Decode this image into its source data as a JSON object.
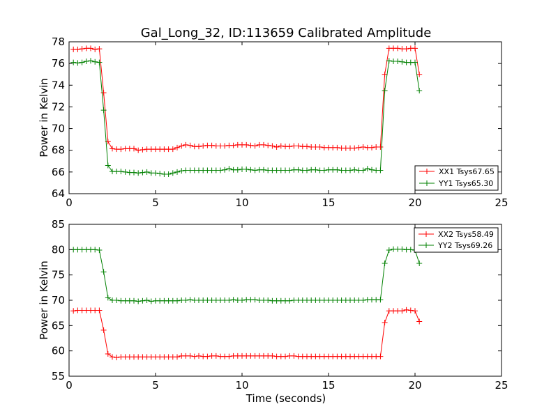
{
  "figure": {
    "title": "Gal_Long_32, ID:113659 Calibrated Amplitude",
    "xlabel": "Time (seconds)"
  },
  "colors": {
    "xx": "#ff0000",
    "yy": "#008000"
  },
  "chart_data": [
    {
      "type": "line",
      "ylabel": "Power in Kelvin",
      "xlim": [
        0,
        25
      ],
      "ylim": [
        64,
        78
      ],
      "xticks": [
        0,
        5,
        10,
        15,
        20,
        25
      ],
      "yticks": [
        64,
        66,
        68,
        70,
        72,
        74,
        76,
        78
      ],
      "legend_position": "lower-right",
      "marker": "plus",
      "series": [
        {
          "name": "XX1 Tsys67.65",
          "color": "#ff0000",
          "x": [
            0.25,
            0.5,
            0.75,
            1.0,
            1.25,
            1.5,
            1.75,
            2.0,
            2.25,
            2.5,
            2.75,
            3.0,
            3.25,
            3.5,
            3.75,
            4.0,
            4.25,
            4.5,
            4.75,
            5.0,
            5.25,
            5.5,
            5.75,
            6.0,
            6.25,
            6.5,
            6.75,
            7.0,
            7.25,
            7.5,
            7.75,
            8.0,
            8.25,
            8.5,
            8.75,
            9.0,
            9.25,
            9.5,
            9.75,
            10.0,
            10.25,
            10.5,
            10.75,
            11.0,
            11.25,
            11.5,
            11.75,
            12.0,
            12.25,
            12.5,
            12.75,
            13.0,
            13.25,
            13.5,
            13.75,
            14.0,
            14.25,
            14.5,
            14.75,
            15.0,
            15.25,
            15.5,
            15.75,
            16.0,
            16.25,
            16.5,
            16.75,
            17.0,
            17.25,
            17.5,
            17.75,
            18.0,
            18.25,
            18.5,
            18.75,
            19.0,
            19.25,
            19.5,
            19.75,
            20.0,
            20.25
          ],
          "y": [
            77.3,
            77.3,
            77.35,
            77.4,
            77.4,
            77.3,
            77.35,
            73.3,
            68.8,
            68.15,
            68.1,
            68.1,
            68.15,
            68.15,
            68.15,
            68.0,
            68.05,
            68.1,
            68.1,
            68.1,
            68.1,
            68.1,
            68.1,
            68.1,
            68.25,
            68.4,
            68.5,
            68.45,
            68.35,
            68.35,
            68.4,
            68.45,
            68.45,
            68.4,
            68.4,
            68.4,
            68.45,
            68.45,
            68.5,
            68.5,
            68.5,
            68.45,
            68.4,
            68.5,
            68.5,
            68.45,
            68.4,
            68.3,
            68.4,
            68.35,
            68.35,
            68.4,
            68.4,
            68.35,
            68.35,
            68.3,
            68.3,
            68.3,
            68.25,
            68.25,
            68.25,
            68.25,
            68.2,
            68.2,
            68.2,
            68.2,
            68.25,
            68.3,
            68.25,
            68.25,
            68.3,
            68.3,
            75.0,
            77.4,
            77.4,
            77.4,
            77.35,
            77.35,
            77.4,
            77.4,
            75.0
          ]
        },
        {
          "name": "YY1 Tsys65.30",
          "color": "#008000",
          "x": [
            0.25,
            0.5,
            0.75,
            1.0,
            1.25,
            1.5,
            1.75,
            2.0,
            2.25,
            2.5,
            2.75,
            3.0,
            3.25,
            3.5,
            3.75,
            4.0,
            4.25,
            4.5,
            4.75,
            5.0,
            5.25,
            5.5,
            5.75,
            6.0,
            6.25,
            6.5,
            6.75,
            7.0,
            7.25,
            7.5,
            7.75,
            8.0,
            8.25,
            8.5,
            8.75,
            9.0,
            9.25,
            9.5,
            9.75,
            10.0,
            10.25,
            10.5,
            10.75,
            11.0,
            11.25,
            11.5,
            11.75,
            12.0,
            12.25,
            12.5,
            12.75,
            13.0,
            13.25,
            13.5,
            13.75,
            14.0,
            14.25,
            14.5,
            14.75,
            15.0,
            15.25,
            15.5,
            15.75,
            16.0,
            16.25,
            16.5,
            16.75,
            17.0,
            17.25,
            17.5,
            17.75,
            18.0,
            18.25,
            18.5,
            18.75,
            19.0,
            19.25,
            19.5,
            19.75,
            20.0,
            20.25
          ],
          "y": [
            76.1,
            76.05,
            76.1,
            76.2,
            76.25,
            76.15,
            76.1,
            71.7,
            66.6,
            66.05,
            66.05,
            66.05,
            66.0,
            65.95,
            65.95,
            65.9,
            65.95,
            66.0,
            65.9,
            65.9,
            65.85,
            65.8,
            65.8,
            65.9,
            66.0,
            66.1,
            66.15,
            66.15,
            66.15,
            66.15,
            66.15,
            66.15,
            66.15,
            66.15,
            66.15,
            66.2,
            66.3,
            66.2,
            66.2,
            66.25,
            66.25,
            66.2,
            66.15,
            66.2,
            66.2,
            66.15,
            66.15,
            66.15,
            66.15,
            66.15,
            66.15,
            66.2,
            66.2,
            66.15,
            66.15,
            66.2,
            66.2,
            66.15,
            66.15,
            66.2,
            66.2,
            66.2,
            66.15,
            66.15,
            66.15,
            66.2,
            66.15,
            66.15,
            66.3,
            66.2,
            66.15,
            66.15,
            73.5,
            76.25,
            76.2,
            76.2,
            76.15,
            76.1,
            76.1,
            76.1,
            73.5
          ]
        }
      ]
    },
    {
      "type": "line",
      "ylabel": "Power in Kelvin",
      "xlim": [
        0,
        25
      ],
      "ylim": [
        55,
        85
      ],
      "xticks": [
        0,
        5,
        10,
        15,
        20,
        25
      ],
      "yticks": [
        55,
        60,
        65,
        70,
        75,
        80,
        85
      ],
      "legend_position": "upper-right",
      "marker": "plus",
      "series": [
        {
          "name": "XX2 Tsys58.49",
          "color": "#ff0000",
          "x": [
            0.25,
            0.5,
            0.75,
            1.0,
            1.25,
            1.5,
            1.75,
            2.0,
            2.25,
            2.5,
            2.75,
            3.0,
            3.25,
            3.5,
            3.75,
            4.0,
            4.25,
            4.5,
            4.75,
            5.0,
            5.25,
            5.5,
            5.75,
            6.0,
            6.25,
            6.5,
            6.75,
            7.0,
            7.25,
            7.5,
            7.75,
            8.0,
            8.25,
            8.5,
            8.75,
            9.0,
            9.25,
            9.5,
            9.75,
            10.0,
            10.25,
            10.5,
            10.75,
            11.0,
            11.25,
            11.5,
            11.75,
            12.0,
            12.25,
            12.5,
            12.75,
            13.0,
            13.25,
            13.5,
            13.75,
            14.0,
            14.25,
            14.5,
            14.75,
            15.0,
            15.25,
            15.5,
            15.75,
            16.0,
            16.25,
            16.5,
            16.75,
            17.0,
            17.25,
            17.5,
            17.75,
            18.0,
            18.25,
            18.5,
            18.75,
            19.0,
            19.25,
            19.5,
            19.75,
            20.0,
            20.25
          ],
          "y": [
            67.9,
            68.0,
            68.0,
            68.0,
            68.0,
            68.0,
            68.0,
            64.1,
            59.4,
            58.8,
            58.7,
            58.8,
            58.8,
            58.8,
            58.8,
            58.8,
            58.8,
            58.8,
            58.8,
            58.8,
            58.8,
            58.8,
            58.8,
            58.8,
            58.8,
            59.0,
            59.0,
            59.0,
            58.9,
            59.0,
            58.9,
            58.9,
            59.0,
            59.0,
            58.9,
            58.9,
            58.9,
            59.0,
            59.0,
            59.0,
            59.0,
            59.0,
            59.0,
            59.0,
            59.0,
            59.0,
            59.0,
            58.9,
            58.9,
            58.9,
            59.0,
            59.0,
            58.9,
            58.9,
            58.9,
            58.9,
            58.9,
            58.9,
            58.9,
            58.9,
            58.9,
            58.9,
            58.9,
            58.9,
            58.9,
            58.9,
            58.9,
            58.9,
            58.9,
            58.9,
            58.9,
            58.9,
            65.6,
            67.9,
            67.9,
            67.9,
            67.9,
            68.1,
            68.0,
            67.9,
            65.8
          ]
        },
        {
          "name": "YY2 Tsys69.26",
          "color": "#008000",
          "x": [
            0.25,
            0.5,
            0.75,
            1.0,
            1.25,
            1.5,
            1.75,
            2.0,
            2.25,
            2.5,
            2.75,
            3.0,
            3.25,
            3.5,
            3.75,
            4.0,
            4.25,
            4.5,
            4.75,
            5.0,
            5.25,
            5.5,
            5.75,
            6.0,
            6.25,
            6.5,
            6.75,
            7.0,
            7.25,
            7.5,
            7.75,
            8.0,
            8.25,
            8.5,
            8.75,
            9.0,
            9.25,
            9.5,
            9.75,
            10.0,
            10.25,
            10.5,
            10.75,
            11.0,
            11.25,
            11.5,
            11.75,
            12.0,
            12.25,
            12.5,
            12.75,
            13.0,
            13.25,
            13.5,
            13.75,
            14.0,
            14.25,
            14.5,
            14.75,
            15.0,
            15.25,
            15.5,
            15.75,
            16.0,
            16.25,
            16.5,
            16.75,
            17.0,
            17.25,
            17.5,
            17.75,
            18.0,
            18.25,
            18.5,
            18.75,
            19.0,
            19.25,
            19.5,
            19.75,
            20.0,
            20.25
          ],
          "y": [
            80.0,
            80.0,
            80.0,
            80.0,
            80.0,
            80.0,
            79.9,
            75.6,
            70.5,
            70.0,
            70.0,
            69.9,
            69.9,
            69.9,
            69.9,
            69.8,
            69.9,
            70.0,
            69.8,
            69.9,
            69.9,
            69.9,
            69.9,
            69.9,
            69.9,
            70.0,
            70.0,
            70.1,
            70.0,
            70.0,
            70.0,
            70.0,
            70.0,
            70.0,
            70.0,
            70.0,
            70.0,
            70.1,
            70.0,
            70.0,
            70.1,
            70.1,
            70.1,
            70.0,
            70.0,
            70.0,
            69.9,
            69.9,
            69.9,
            69.9,
            69.9,
            70.0,
            70.0,
            70.0,
            70.0,
            70.0,
            70.0,
            70.0,
            70.0,
            70.0,
            70.0,
            70.0,
            70.0,
            70.0,
            70.0,
            70.0,
            70.0,
            70.0,
            70.1,
            70.1,
            70.1,
            70.1,
            77.3,
            79.9,
            80.1,
            80.1,
            80.1,
            80.0,
            80.0,
            79.9,
            77.3
          ]
        }
      ]
    }
  ]
}
